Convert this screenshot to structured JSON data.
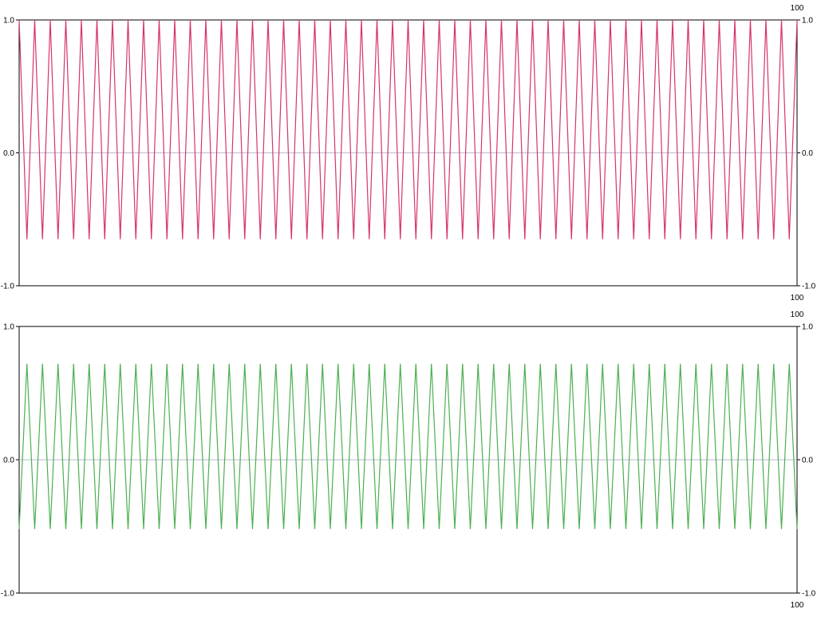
{
  "chart_data": [
    {
      "type": "line",
      "ylim": [
        -1.0,
        1.0
      ],
      "y_ticks_left": [
        "1.0",
        "0.0",
        "-1.0"
      ],
      "y_ticks_right": [
        "1.0",
        "0.0",
        "-1.0"
      ],
      "x_top_label": "100",
      "x_bottom_label": "100",
      "grid": false,
      "series": [
        {
          "color": "#d6336c",
          "peaks": 50,
          "max": 1.0,
          "min": -0.65,
          "start": 1.0
        }
      ]
    },
    {
      "type": "line",
      "ylim": [
        -1.0,
        1.0
      ],
      "y_ticks_left": [
        "1.0",
        "0.0",
        "-1.0"
      ],
      "y_ticks_right": [
        "1.0",
        "0.0",
        "-1.0"
      ],
      "x_top_label": "100",
      "x_bottom_label": "100",
      "grid": false,
      "series": [
        {
          "color": "#4caf50",
          "peaks": 50,
          "max": 0.72,
          "min": -0.52,
          "start": -0.52
        }
      ]
    }
  ]
}
